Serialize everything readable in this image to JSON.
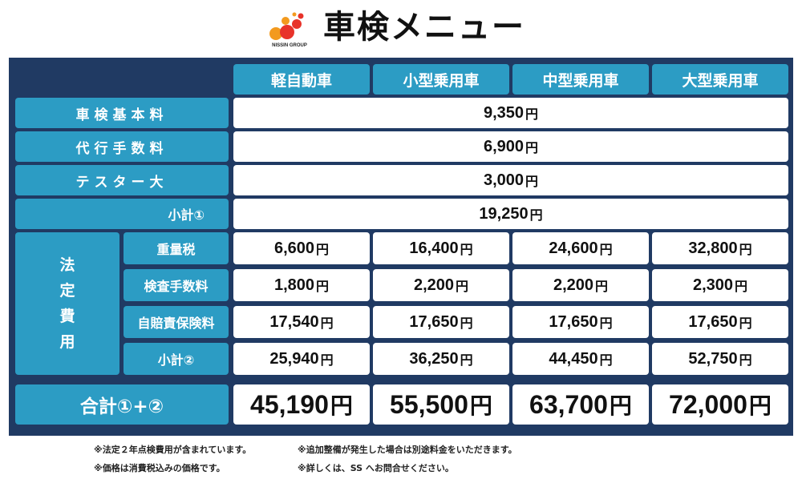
{
  "header": {
    "logo_text": "NISSIN GROUP",
    "title": "車検メニュー"
  },
  "columns": [
    "軽自動車",
    "小型乗用車",
    "中型乗用車",
    "大型乗用車"
  ],
  "common_rows": [
    {
      "label": "車検基本料",
      "value": "9,350",
      "unit": "円"
    },
    {
      "label": "代行手数料",
      "value": "6,900",
      "unit": "円"
    },
    {
      "label": "テスター大",
      "value": "3,000",
      "unit": "円"
    }
  ],
  "subtotal1": {
    "label": "小計①",
    "value": "19,250",
    "unit": "円"
  },
  "legal": {
    "group_label": [
      "法",
      "定",
      "費",
      "用"
    ],
    "rows": [
      {
        "label": "重量税",
        "values": [
          "6,600",
          "16,400",
          "24,600",
          "32,800"
        ]
      },
      {
        "label": "検査手数料",
        "values": [
          "1,800",
          "2,200",
          "2,200",
          "2,300"
        ]
      },
      {
        "label": "自賠責保険料",
        "values": [
          "17,540",
          "17,650",
          "17,650",
          "17,650"
        ]
      },
      {
        "label": "小計②",
        "values": [
          "25,940",
          "36,250",
          "44,450",
          "52,750"
        ]
      }
    ],
    "unit": "円"
  },
  "total": {
    "label": "合計①+②",
    "values": [
      "45,190",
      "55,500",
      "63,700",
      "72,000"
    ],
    "unit": "円"
  },
  "notes": {
    "left": [
      "※法定２年点検費用が含まれています。",
      "※価格は消費税込みの価格です。"
    ],
    "right": [
      "※追加整備が発生した場合は別途料金をいただきます。",
      "※詳しくは、SS へお問合せください。"
    ]
  },
  "colors": {
    "navy": "#203a63",
    "cell_blue": "#2c9cc4",
    "logo_red": "#e8332a",
    "logo_orange": "#f39a1e"
  }
}
